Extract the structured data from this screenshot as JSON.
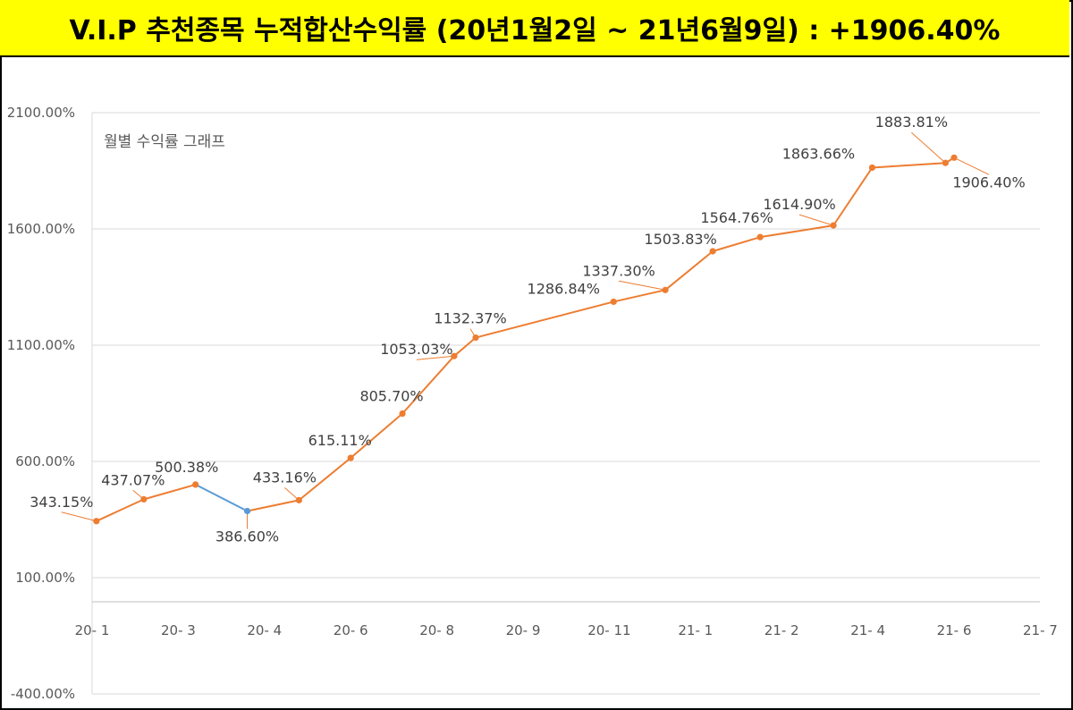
{
  "title": "V.I.P 추천종목 누적합산수익률 (20년1월2일 ~ 21년6월9일) : +1906.40%",
  "colors": {
    "title_bg": "#ffff00",
    "line": "#ed7d31",
    "highlight_line": "#5b9bd5",
    "grid": "#d9d9d9"
  },
  "chart_data": {
    "type": "line",
    "title": "월별 수익률 그래프",
    "categories": [
      "20- 1",
      "20- 3",
      "20- 4",
      "20- 6",
      "20- 8",
      "20- 9",
      "20- 11",
      "21- 1",
      "21- 2",
      "21- 4",
      "21- 6",
      "21- 7"
    ],
    "y_ticks": [
      "2100.00%",
      "1600.00%",
      "1100.00%",
      "600.00%",
      "100.00%",
      "-400.00%"
    ],
    "ylim": [
      -400,
      2100
    ],
    "points": [
      {
        "x": 0.05,
        "value": 343.15,
        "label": "343.15%"
      },
      {
        "x": 0.6,
        "value": 437.07,
        "label": "437.07%"
      },
      {
        "x": 1.2,
        "value": 500.38,
        "label": "500.38%"
      },
      {
        "x": 1.8,
        "value": 386.6,
        "label": "386.60%"
      },
      {
        "x": 2.4,
        "value": 433.16,
        "label": "433.16%"
      },
      {
        "x": 3.0,
        "value": 615.11,
        "label": "615.11%"
      },
      {
        "x": 3.6,
        "value": 805.7,
        "label": "805.70%"
      },
      {
        "x": 4.2,
        "value": 1053.03,
        "label": "1053.03%"
      },
      {
        "x": 4.45,
        "value": 1132.37,
        "label": "1132.37%"
      },
      {
        "x": 6.05,
        "value": 1286.84,
        "label": "1286.84%"
      },
      {
        "x": 6.65,
        "value": 1337.3,
        "label": "1337.30%"
      },
      {
        "x": 7.2,
        "value": 1503.83,
        "label": "1503.83%"
      },
      {
        "x": 7.75,
        "value": 1564.76,
        "label": "1564.76%"
      },
      {
        "x": 8.6,
        "value": 1614.9,
        "label": "1614.90%"
      },
      {
        "x": 9.05,
        "value": 1863.66,
        "label": "1863.66%"
      },
      {
        "x": 9.9,
        "value": 1883.81,
        "label": "1883.81%"
      },
      {
        "x": 10.0,
        "value": 1906.4,
        "label": "1906.40%"
      }
    ]
  }
}
